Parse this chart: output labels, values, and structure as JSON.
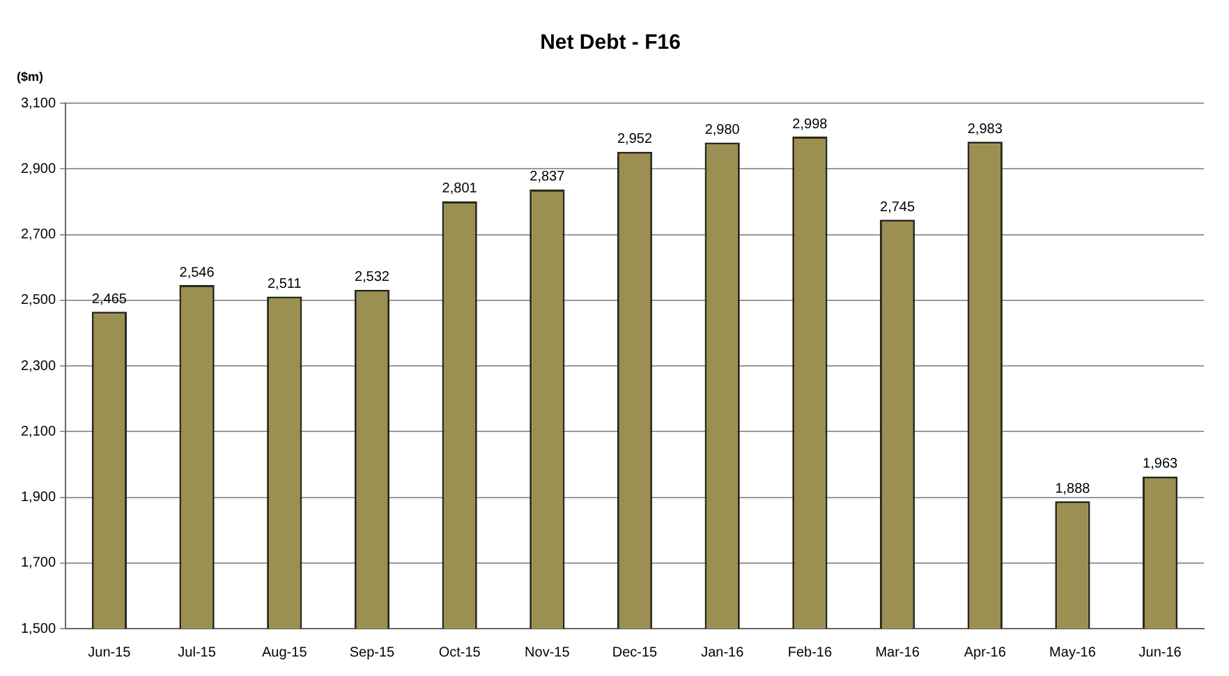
{
  "chart_data": {
    "type": "bar",
    "title": "Net Debt - F16",
    "ylabel": "($m)",
    "categories": [
      "Jun-15",
      "Jul-15",
      "Aug-15",
      "Sep-15",
      "Oct-15",
      "Nov-15",
      "Dec-15",
      "Jan-16",
      "Feb-16",
      "Mar-16",
      "Apr-16",
      "May-16",
      "Jun-16"
    ],
    "values": [
      2465,
      2546,
      2511,
      2532,
      2801,
      2837,
      2952,
      2980,
      2998,
      2745,
      2983,
      1888,
      1963
    ],
    "value_labels": [
      "2,465",
      "2,546",
      "2,511",
      "2,532",
      "2,801",
      "2,837",
      "2,952",
      "2,980",
      "2,998",
      "2,745",
      "2,983",
      "1,888",
      "1,963"
    ],
    "color": "#9c8f52",
    "ylim": [
      1500,
      3100
    ],
    "yticks": [
      {
        "value": 1500,
        "label": "1,500"
      },
      {
        "value": 1700,
        "label": "1,700"
      },
      {
        "value": 1900,
        "label": "1,900"
      },
      {
        "value": 2100,
        "label": "2,100"
      },
      {
        "value": 2300,
        "label": "2,300"
      },
      {
        "value": 2500,
        "label": "2,500"
      },
      {
        "value": 2700,
        "label": "2,700"
      },
      {
        "value": 2900,
        "label": "2,900"
      },
      {
        "value": 3100,
        "label": "3,100"
      }
    ],
    "grid": "y",
    "legend": false
  }
}
